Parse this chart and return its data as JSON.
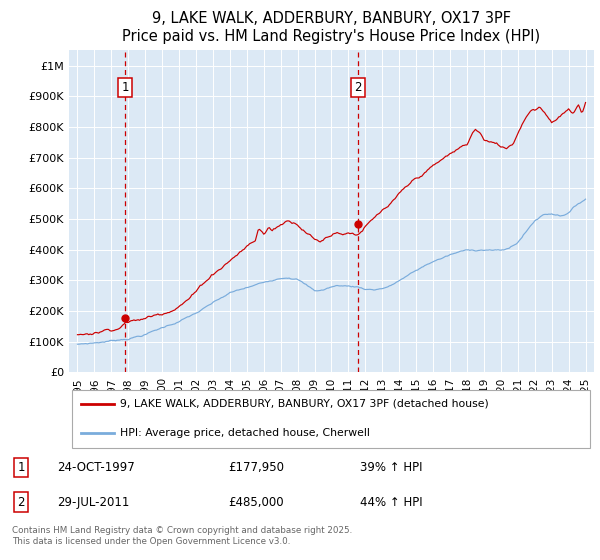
{
  "title": "9, LAKE WALK, ADDERBURY, BANBURY, OX17 3PF",
  "subtitle": "Price paid vs. HM Land Registry's House Price Index (HPI)",
  "background_color": "#ffffff",
  "plot_bg_color": "#dce9f5",
  "red_color": "#cc0000",
  "blue_color": "#7aacdc",
  "grid_color": "#ffffff",
  "sale1_x": 1997.82,
  "sale1_y": 177950,
  "sale1_label": "1",
  "sale2_x": 2011.58,
  "sale2_y": 485000,
  "sale2_label": "2",
  "ylim": [
    0,
    1050000
  ],
  "xlim": [
    1994.5,
    2025.5
  ],
  "yticks": [
    0,
    100000,
    200000,
    300000,
    400000,
    500000,
    600000,
    700000,
    800000,
    900000,
    1000000
  ],
  "ytick_labels": [
    "£0",
    "£100K",
    "£200K",
    "£300K",
    "£400K",
    "£500K",
    "£600K",
    "£700K",
    "£800K",
    "£900K",
    "£1M"
  ],
  "xticks": [
    1995,
    1996,
    1997,
    1998,
    1999,
    2000,
    2001,
    2002,
    2003,
    2004,
    2005,
    2006,
    2007,
    2008,
    2009,
    2010,
    2011,
    2012,
    2013,
    2014,
    2015,
    2016,
    2017,
    2018,
    2019,
    2020,
    2021,
    2022,
    2023,
    2024,
    2025
  ],
  "legend_label_red": "9, LAKE WALK, ADDERBURY, BANBURY, OX17 3PF (detached house)",
  "legend_label_blue": "HPI: Average price, detached house, Cherwell",
  "annotation1_date": "24-OCT-1997",
  "annotation1_price": "£177,950",
  "annotation1_hpi": "39% ↑ HPI",
  "annotation2_date": "29-JUL-2011",
  "annotation2_price": "£485,000",
  "annotation2_hpi": "44% ↑ HPI",
  "footer": "Contains HM Land Registry data © Crown copyright and database right 2025.\nThis data is licensed under the Open Government Licence v3.0."
}
